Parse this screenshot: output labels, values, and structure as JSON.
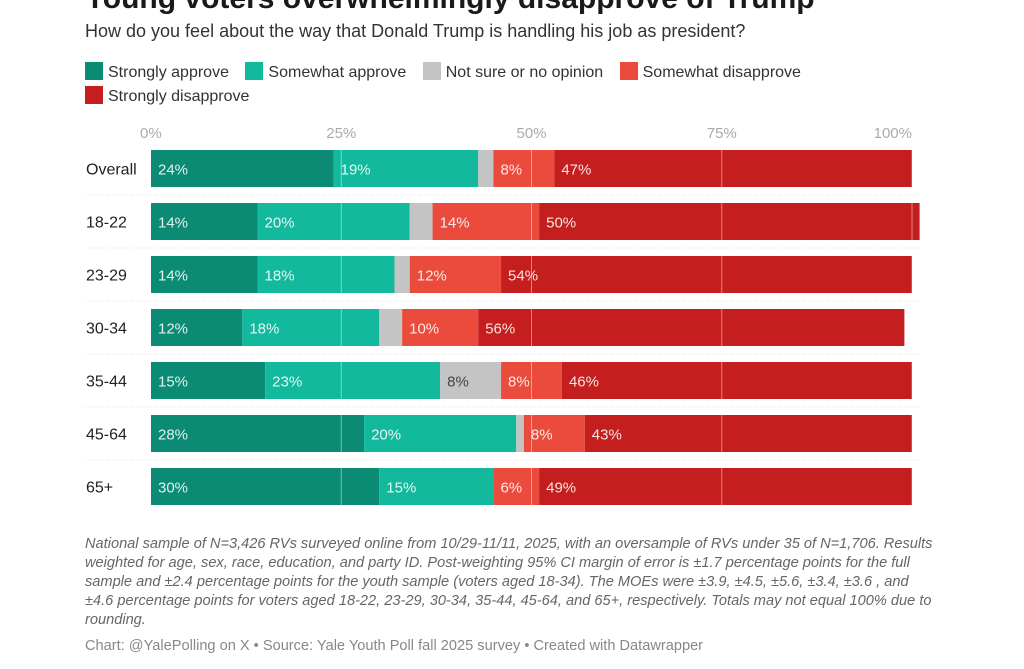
{
  "chart_data": {
    "type": "bar",
    "orientation": "horizontal-stacked",
    "title": "Young voters overwhelmingly disapprove of Trump",
    "subtitle": "How do you feel about the way that Donald Trump is handling his job as president?",
    "xlim": [
      0,
      100
    ],
    "x_ticks": [
      "0%",
      "25%",
      "50%",
      "75%",
      "100%"
    ],
    "x_tick_values": [
      0,
      25,
      50,
      75,
      100
    ],
    "grid": true,
    "legend_position": "top",
    "categories": [
      "Overall",
      "18-22",
      "23-29",
      "30-34",
      "35-44",
      "45-64",
      "65+"
    ],
    "series": [
      {
        "name": "Strongly approve",
        "color": "#0b8a74",
        "label_color": "#ffffff",
        "values": [
          24,
          14,
          14,
          12,
          15,
          28,
          30
        ],
        "labels": [
          "24%",
          "14%",
          "14%",
          "12%",
          "15%",
          "28%",
          "30%"
        ]
      },
      {
        "name": "Somewhat approve",
        "color": "#12b99d",
        "label_color": "#ffffff",
        "values": [
          19,
          20,
          18,
          18,
          23,
          20,
          15
        ],
        "labels": [
          "19%",
          "20%",
          "18%",
          "18%",
          "23%",
          "20%",
          "15%"
        ]
      },
      {
        "name": "Not sure or no opinion",
        "color": "#c4c4c4",
        "label_color": "#444444",
        "values": [
          2,
          3,
          2,
          3,
          8,
          1,
          0
        ],
        "labels": [
          "",
          "",
          "",
          "",
          "8%",
          "",
          ""
        ]
      },
      {
        "name": "Somewhat disapprove",
        "color": "#ea4b3c",
        "label_color": "#ffffff",
        "values": [
          8,
          14,
          12,
          10,
          8,
          8,
          6
        ],
        "labels": [
          "8%",
          "14%",
          "12%",
          "10%",
          "8%",
          "8%",
          "6%"
        ]
      },
      {
        "name": "Strongly disapprove",
        "color": "#c41e1e",
        "label_color": "#ffffff",
        "values": [
          47,
          50,
          54,
          56,
          46,
          43,
          49
        ],
        "labels": [
          "47%",
          "50%",
          "54%",
          "56%",
          "46%",
          "43%",
          "49%"
        ]
      }
    ]
  },
  "legend": [
    {
      "label": "Strongly approve",
      "color": "#0b8a74"
    },
    {
      "label": "Somewhat approve",
      "color": "#12b99d"
    },
    {
      "label": "Not sure or no opinion",
      "color": "#c4c4c4"
    },
    {
      "label": "Somewhat disapprove",
      "color": "#ea4b3c"
    },
    {
      "label": "Strongly disapprove",
      "color": "#c41e1e"
    }
  ],
  "notes": "National sample of N=3,426 RVs surveyed online from 10/29-11/11, 2025, with an oversample of RVs under 35 of N=1,706. Results weighted for age, sex, race, education, and party ID. Post-weighting 95% CI margin of error is ±1.7 percentage points for the full sample and ±2.4 percentage points for the youth sample (voters aged 18-34). The MOEs were ±3.9, ±4.5, ±5.6, ±3.4, ±3.6 , and ±4.6 percentage points for voters aged 18-22, 23-29, 30-34, 35-44, 45-64, and 65+, respectively. Totals may not equal 100% due to rounding.",
  "footer": "Chart: @YalePolling on X • Source: Yale Youth Poll fall 2025 survey • Created with Datawrapper"
}
